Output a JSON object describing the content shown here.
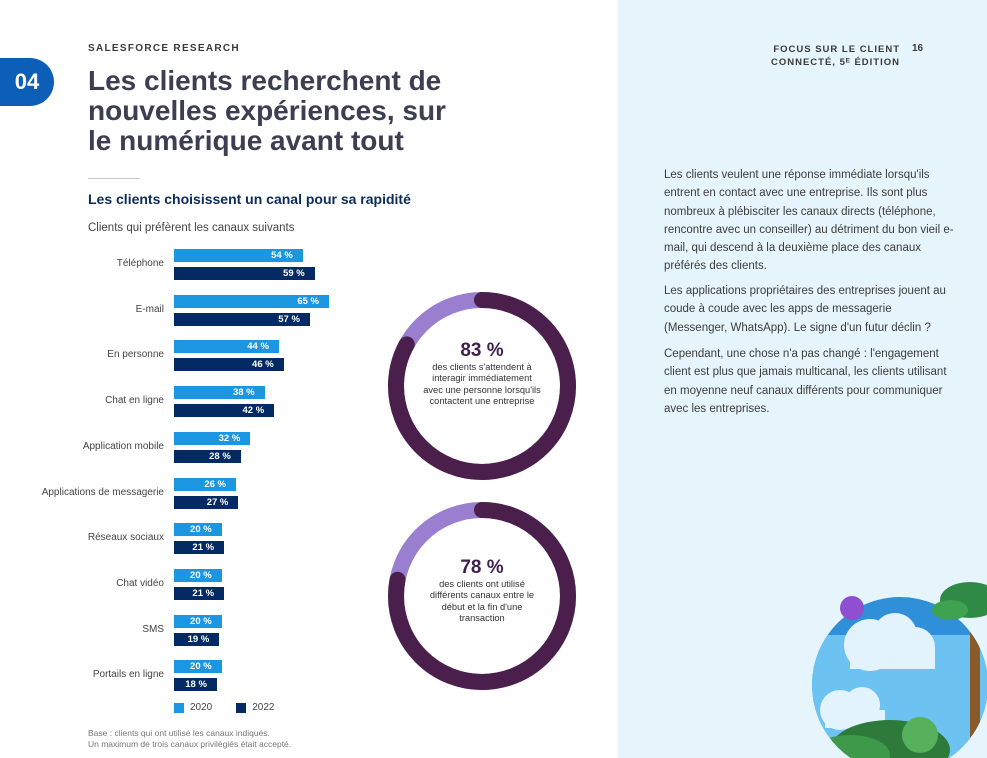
{
  "header": {
    "badge": "04",
    "kicker": "SALESFORCE RESEARCH",
    "title": "Les clients recherchent de nouvelles expériences, sur le numérique avant tout",
    "right_title_line1": "FOCUS SUR LE CLIENT",
    "right_title_line2": "CONNECTÉ, 5ᴱ ÉDITION",
    "page_number": "16"
  },
  "section": {
    "subtitle": "Les clients choisissent un canal pour sa rapidité",
    "caption": "Clients qui préfèrent les canaux suivants",
    "footnote_line1": "Base : clients qui ont utilisé les canaux indiqués.",
    "footnote_line2": "Un maximum de trois canaux privilégiés était accepté."
  },
  "chart_data": {
    "type": "bar",
    "orientation": "horizontal",
    "categories": [
      "Téléphone",
      "E-mail",
      "En personne",
      "Chat en ligne",
      "Application mobile",
      "Applications de messagerie",
      "Réseaux sociaux",
      "Chat vidéo",
      "SMS",
      "Portails en ligne"
    ],
    "series": [
      {
        "name": "2020",
        "color": "#1b96e0",
        "values": [
          54,
          65,
          44,
          38,
          32,
          26,
          20,
          20,
          20,
          20
        ]
      },
      {
        "name": "2022",
        "color": "#042a63",
        "values": [
          59,
          57,
          46,
          42,
          28,
          27,
          21,
          21,
          19,
          18
        ]
      }
    ],
    "value_suffix": " %",
    "title": "Clients qui préfèrent les canaux suivants",
    "xlim": [
      0,
      100
    ],
    "legend": "bottom-left"
  },
  "donuts": [
    {
      "value": 83,
      "label": "83 %",
      "description": "des clients s'attendent à interagir immédiatement avec une personne lorsqu'ils contactent une entreprise"
    },
    {
      "value": 78,
      "label": "78 %",
      "description": "des clients ont utilisé différents canaux entre le début et la fin d'une transaction"
    }
  ],
  "colors": {
    "donut_main": "#4a1f4c",
    "donut_rest": "#9a7ed0",
    "accent_blue": "#0d5eb6",
    "panel_bg": "#e6f4fc"
  },
  "body_text": {
    "p1": "Les clients veulent une réponse immédiate lorsqu'ils entrent en contact avec une entreprise. Ils sont plus nombreux à plébisciter les canaux directs (téléphone, rencontre avec un conseiller) au détriment du bon vieil e-mail, qui descend à la deuxième place des canaux préférés des clients.",
    "p2": "Les applications propriétaires des entreprises jouent au coude à coude avec les apps de messagerie (Messenger, WhatsApp). Le signe d'un futur déclin ?",
    "p3": "Cependant, une chose n'a pas changé : l'engagement client est plus que jamais multicanal, les clients utilisant en moyenne neuf canaux différents pour communiquer avec les entreprises."
  }
}
